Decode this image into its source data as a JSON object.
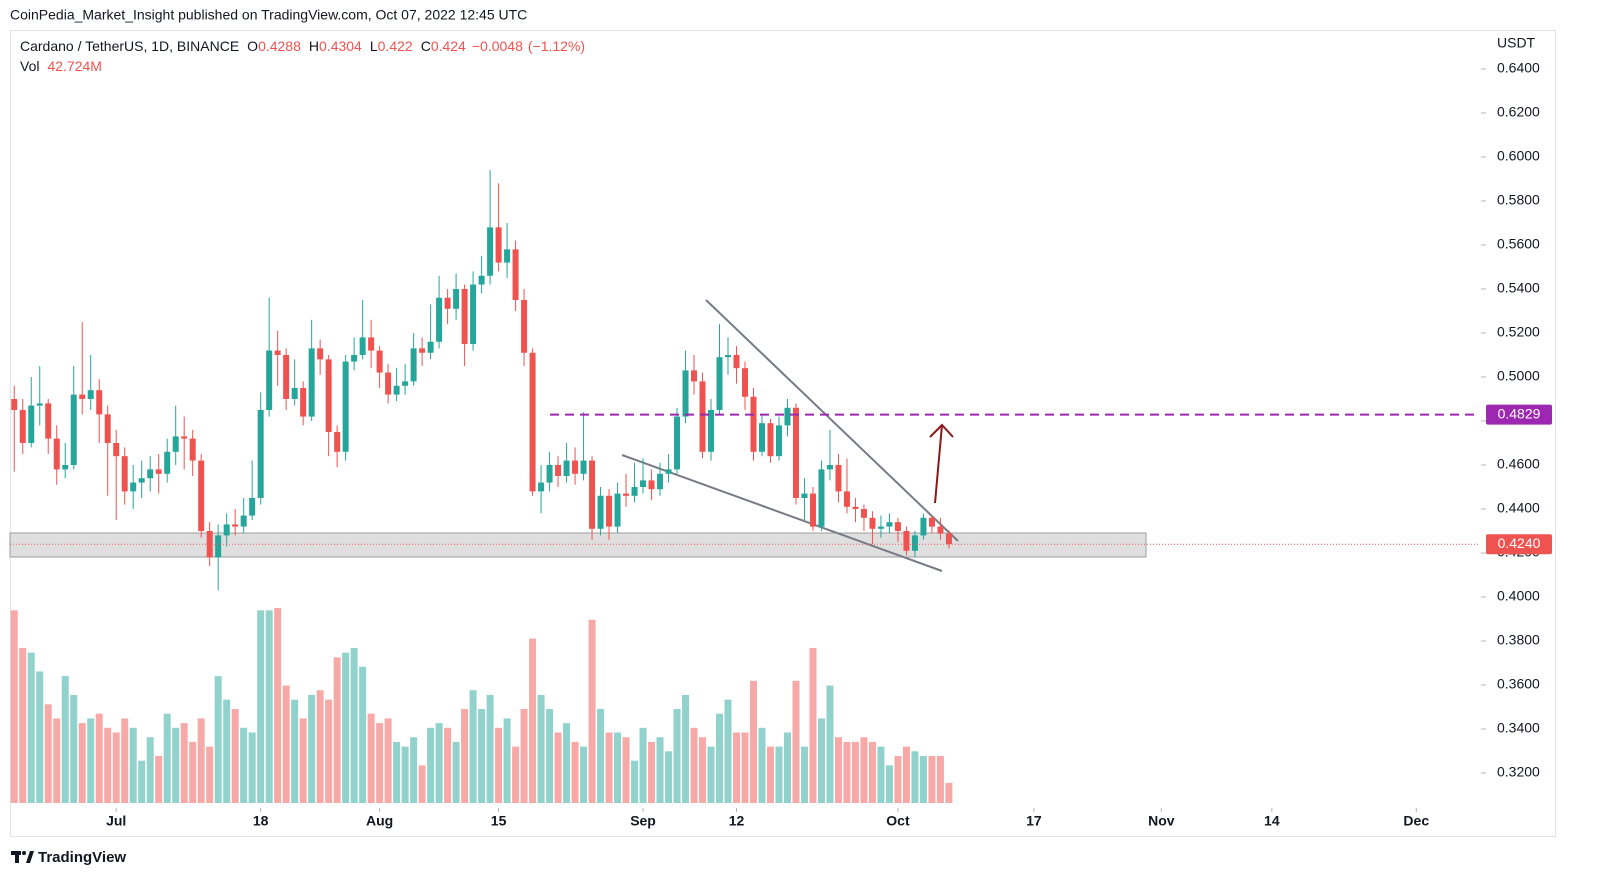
{
  "chart_data": {
    "type": "candlestick",
    "published": "CoinPedia_Market_Insight published on TradingView.com, Oct 07, 2022 12:45 UTC",
    "title": "Cardano / TetherUS, 1D, BINANCE",
    "ohlc_letters": [
      "O",
      "H",
      "L",
      "C"
    ],
    "change": {
      "value": -0.0048,
      "label": "−0.0048"
    },
    "change_pct": {
      "value": -1.12,
      "label": "(−1.12%)"
    },
    "vol_title": "Vol",
    "vol_last": {
      "value": 42.724,
      "label": "42.724M"
    },
    "y_unit": "USDT",
    "brand": "TradingView",
    "up_color": "#26a69a",
    "down_color": "#ef5350",
    "level": {
      "value": 0.4829,
      "color": "#9c27b0"
    },
    "last_price": {
      "value": 0.424,
      "label": "0.4240"
    },
    "ylim": [
      0.3041,
      0.6577
    ],
    "yticks": [
      {
        "value": 0.32,
        "label": "0.3200"
      },
      {
        "value": 0.34,
        "label": "0.3400"
      },
      {
        "value": 0.36,
        "label": "0.3600"
      },
      {
        "value": 0.38,
        "label": "0.3800"
      },
      {
        "value": 0.4,
        "label": "0.4000"
      },
      {
        "value": 0.42,
        "label": "0.4200"
      },
      {
        "value": 0.44,
        "label": "0.4400"
      },
      {
        "value": 0.46,
        "label": "0.4600"
      },
      {
        "value": 0.48,
        "label": "0.4800"
      },
      {
        "value": 0.5,
        "label": "0.5000"
      },
      {
        "value": 0.52,
        "label": "0.5200"
      },
      {
        "value": 0.54,
        "label": "0.5400"
      },
      {
        "value": 0.56,
        "label": "0.5600"
      },
      {
        "value": 0.58,
        "label": "0.5800"
      },
      {
        "value": 0.6,
        "label": "0.6000"
      },
      {
        "value": 0.62,
        "label": "0.6200"
      },
      {
        "value": 0.64,
        "label": "0.6400"
      }
    ],
    "categories": [
      null,
      null,
      null,
      null,
      null,
      null,
      null,
      null,
      null,
      null,
      null,
      null,
      "Jul",
      null,
      null,
      null,
      null,
      null,
      null,
      null,
      null,
      null,
      null,
      null,
      null,
      null,
      null,
      null,
      null,
      "18",
      null,
      null,
      null,
      null,
      null,
      null,
      null,
      null,
      null,
      null,
      null,
      null,
      null,
      "Aug",
      null,
      null,
      null,
      null,
      null,
      null,
      null,
      null,
      null,
      null,
      null,
      null,
      null,
      "15",
      null,
      null,
      null,
      null,
      null,
      null,
      null,
      null,
      null,
      null,
      null,
      null,
      null,
      null,
      null,
      null,
      "Sep",
      null,
      null,
      null,
      null,
      null,
      null,
      null,
      null,
      null,
      null,
      "12",
      null,
      null,
      null,
      null,
      null,
      null,
      null,
      null,
      null,
      null,
      null,
      null,
      null,
      null,
      null,
      null,
      null,
      null,
      "Oct",
      null,
      null,
      null,
      null,
      null,
      null,
      null,
      null,
      null,
      null,
      null,
      null,
      null,
      null,
      null,
      "17",
      null,
      null,
      null,
      null,
      null,
      null,
      null,
      null,
      null,
      null,
      null,
      null,
      null,
      null,
      "Nov",
      null,
      null,
      null,
      null,
      null,
      null,
      null,
      null,
      null,
      null,
      null,
      null,
      "14",
      null,
      null,
      null,
      null,
      null,
      null,
      null,
      null,
      null,
      null,
      null,
      null,
      null,
      null,
      null,
      null,
      "Dec",
      null,
      null,
      null,
      null,
      null,
      null,
      null
    ],
    "open": [
      0.49,
      0.485,
      0.47,
      0.487,
      0.488,
      0.472,
      0.458,
      0.46,
      0.492,
      0.49,
      0.494,
      0.483,
      0.47,
      0.464,
      0.448,
      0.452,
      0.454,
      0.458,
      0.456,
      0.466,
      0.473,
      0.472,
      0.462,
      0.43,
      0.418,
      0.428,
      0.433,
      0.432,
      0.437,
      0.445,
      0.485,
      0.512,
      0.51,
      0.49,
      0.495,
      0.482,
      0.513,
      0.508,
      0.475,
      0.466,
      0.507,
      0.51,
      0.518,
      0.512,
      0.502,
      0.492,
      0.496,
      0.498,
      0.513,
      0.511,
      0.516,
      0.536,
      0.531,
      0.54,
      0.515,
      0.542,
      0.546,
      0.568,
      0.552,
      0.558,
      0.535,
      0.511,
      0.448,
      0.452,
      0.46,
      0.455,
      0.462,
      0.456,
      0.462,
      0.431,
      0.446,
      0.432,
      0.447,
      0.446,
      0.45,
      0.453,
      0.449,
      0.456,
      0.458,
      0.482,
      0.503,
      0.498,
      0.466,
      0.485,
      0.509,
      0.51,
      0.504,
      0.491,
      0.466,
      0.479,
      0.464,
      0.478,
      0.486,
      0.445,
      0.447,
      0.432,
      0.458,
      0.46,
      0.448,
      0.441,
      0.44,
      0.436,
      0.431,
      0.432,
      0.434,
      0.43,
      0.421,
      0.428,
      0.436,
      0.432,
      0.4288,
      null,
      null,
      null,
      null,
      null,
      null,
      null,
      null,
      null,
      null,
      null,
      null,
      null,
      null,
      null,
      null,
      null,
      null,
      null,
      null,
      null,
      null,
      null,
      null,
      null,
      null,
      null,
      null,
      null,
      null,
      null,
      null,
      null,
      null,
      null,
      null,
      null,
      null,
      null,
      null,
      null,
      null,
      null,
      null,
      null,
      null,
      null,
      null,
      null,
      null,
      null,
      null,
      null,
      null,
      null,
      null,
      null,
      null,
      null,
      null,
      null,
      null
    ],
    "high": [
      0.496,
      0.49,
      0.5,
      0.505,
      0.49,
      0.478,
      0.47,
      0.505,
      0.525,
      0.51,
      0.499,
      0.487,
      0.476,
      0.468,
      0.46,
      0.462,
      0.464,
      0.465,
      0.472,
      0.487,
      0.482,
      0.476,
      0.465,
      0.434,
      0.433,
      0.438,
      0.44,
      0.445,
      0.462,
      0.493,
      0.536,
      0.521,
      0.513,
      0.508,
      0.498,
      0.526,
      0.517,
      0.51,
      0.478,
      0.51,
      0.518,
      0.535,
      0.526,
      0.514,
      0.506,
      0.504,
      0.506,
      0.52,
      0.518,
      0.533,
      0.546,
      0.54,
      0.547,
      0.542,
      0.548,
      0.555,
      0.594,
      0.588,
      0.57,
      0.562,
      0.54,
      0.513,
      0.46,
      0.466,
      0.464,
      0.47,
      0.468,
      0.484,
      0.464,
      0.45,
      0.449,
      0.452,
      0.456,
      0.461,
      0.463,
      0.458,
      0.461,
      0.465,
      0.486,
      0.512,
      0.51,
      0.502,
      0.49,
      0.524,
      0.518,
      0.514,
      0.507,
      0.495,
      0.483,
      0.481,
      0.482,
      0.49,
      0.488,
      0.454,
      0.45,
      0.462,
      0.476,
      0.465,
      0.463,
      0.445,
      0.442,
      0.439,
      0.437,
      0.438,
      0.436,
      0.432,
      0.43,
      0.438,
      0.437,
      0.436,
      0.4304,
      null,
      null,
      null,
      null,
      null,
      null,
      null,
      null,
      null,
      null,
      null,
      null,
      null,
      null,
      null,
      null,
      null,
      null,
      null,
      null,
      null,
      null,
      null,
      null,
      null,
      null,
      null,
      null,
      null,
      null,
      null,
      null,
      null,
      null,
      null,
      null,
      null,
      null,
      null,
      null,
      null,
      null,
      null,
      null,
      null,
      null,
      null,
      null,
      null,
      null,
      null,
      null,
      null,
      null,
      null,
      null,
      null,
      null,
      null,
      null,
      null,
      null
    ],
    "low": [
      0.457,
      0.465,
      0.468,
      0.478,
      0.465,
      0.451,
      0.454,
      0.458,
      0.483,
      0.485,
      0.47,
      0.446,
      0.435,
      0.442,
      0.44,
      0.445,
      0.448,
      0.447,
      0.452,
      0.46,
      0.458,
      0.455,
      0.427,
      0.414,
      0.403,
      0.423,
      0.428,
      0.429,
      0.435,
      0.442,
      0.482,
      0.496,
      0.485,
      0.487,
      0.478,
      0.48,
      0.501,
      0.464,
      0.459,
      0.462,
      0.503,
      0.508,
      0.504,
      0.495,
      0.488,
      0.489,
      0.492,
      0.496,
      0.505,
      0.508,
      0.513,
      0.524,
      0.526,
      0.505,
      0.512,
      0.538,
      0.542,
      0.548,
      0.545,
      0.53,
      0.505,
      0.446,
      0.438,
      0.448,
      0.45,
      0.452,
      0.451,
      0.453,
      0.426,
      0.428,
      0.426,
      0.429,
      0.441,
      0.443,
      0.447,
      0.444,
      0.446,
      0.452,
      0.456,
      0.479,
      0.492,
      0.463,
      0.462,
      0.483,
      0.501,
      0.497,
      0.485,
      0.462,
      0.464,
      0.461,
      0.462,
      0.473,
      0.442,
      0.435,
      0.43,
      0.43,
      0.453,
      0.443,
      0.438,
      0.434,
      0.43,
      0.424,
      0.427,
      0.429,
      0.425,
      0.419,
      0.418,
      0.426,
      0.429,
      0.426,
      0.422,
      null,
      null,
      null,
      null,
      null,
      null,
      null,
      null,
      null,
      null,
      null,
      null,
      null,
      null,
      null,
      null,
      null,
      null,
      null,
      null,
      null,
      null,
      null,
      null,
      null,
      null,
      null,
      null,
      null,
      null,
      null,
      null,
      null,
      null,
      null,
      null,
      null,
      null,
      null,
      null,
      null,
      null,
      null,
      null,
      null,
      null,
      null,
      null,
      null,
      null,
      null,
      null,
      null,
      null,
      null,
      null,
      null,
      null,
      null,
      null,
      null,
      null
    ],
    "close": [
      0.485,
      0.47,
      0.487,
      0.488,
      0.472,
      0.458,
      0.46,
      0.492,
      0.49,
      0.494,
      0.483,
      0.47,
      0.464,
      0.448,
      0.452,
      0.454,
      0.458,
      0.456,
      0.466,
      0.473,
      0.472,
      0.462,
      0.43,
      0.418,
      0.428,
      0.433,
      0.432,
      0.437,
      0.445,
      0.485,
      0.512,
      0.51,
      0.49,
      0.495,
      0.482,
      0.513,
      0.508,
      0.475,
      0.466,
      0.507,
      0.51,
      0.518,
      0.512,
      0.502,
      0.492,
      0.496,
      0.498,
      0.513,
      0.511,
      0.516,
      0.536,
      0.531,
      0.54,
      0.515,
      0.542,
      0.546,
      0.568,
      0.552,
      0.558,
      0.535,
      0.511,
      0.448,
      0.452,
      0.46,
      0.455,
      0.462,
      0.456,
      0.462,
      0.431,
      0.446,
      0.432,
      0.447,
      0.446,
      0.45,
      0.453,
      0.449,
      0.456,
      0.458,
      0.482,
      0.503,
      0.498,
      0.466,
      0.485,
      0.509,
      0.51,
      0.504,
      0.491,
      0.466,
      0.479,
      0.464,
      0.478,
      0.486,
      0.445,
      0.447,
      0.432,
      0.458,
      0.46,
      0.448,
      0.441,
      0.44,
      0.436,
      0.431,
      0.432,
      0.434,
      0.43,
      0.421,
      0.428,
      0.436,
      0.432,
      0.4288,
      0.424,
      null,
      null,
      null,
      null,
      null,
      null,
      null,
      null,
      null,
      null,
      null,
      null,
      null,
      null,
      null,
      null,
      null,
      null,
      null,
      null,
      null,
      null,
      null,
      null,
      null,
      null,
      null,
      null,
      null,
      null,
      null,
      null,
      null,
      null,
      null,
      null,
      null,
      null,
      null,
      null,
      null,
      null,
      null,
      null,
      null,
      null,
      null,
      null,
      null,
      null,
      null,
      null,
      null,
      null,
      null,
      null,
      null,
      null,
      null,
      null,
      null,
      null
    ],
    "volume": [
      410,
      330,
      320,
      280,
      210,
      180,
      270,
      230,
      170,
      180,
      190,
      160,
      150,
      180,
      160,
      90,
      140,
      100,
      190,
      160,
      170,
      130,
      180,
      120,
      270,
      220,
      200,
      160,
      150,
      410,
      410,
      415,
      250,
      220,
      180,
      230,
      240,
      220,
      310,
      320,
      330,
      290,
      190,
      170,
      180,
      130,
      120,
      140,
      80,
      160,
      170,
      160,
      130,
      200,
      240,
      200,
      230,
      160,
      180,
      120,
      200,
      350,
      230,
      200,
      150,
      170,
      130,
      120,
      390,
      200,
      150,
      150,
      140,
      90,
      160,
      130,
      140,
      110,
      200,
      230,
      160,
      140,
      120,
      190,
      220,
      150,
      150,
      260,
      160,
      120,
      120,
      150,
      260,
      120,
      330,
      180,
      250,
      140,
      130,
      130,
      140,
      130,
      120,
      80,
      100,
      120,
      110,
      100,
      100,
      100,
      42.724,
      null,
      null,
      null,
      null,
      null,
      null,
      null,
      null,
      null,
      null,
      null,
      null,
      null,
      null,
      null,
      null,
      null,
      null,
      null,
      null,
      null,
      null,
      null,
      null,
      null,
      null,
      null,
      null,
      null,
      null,
      null,
      null,
      null,
      null,
      null,
      null,
      null,
      null,
      null,
      null,
      null,
      null,
      null,
      null,
      null,
      null,
      null,
      null,
      null,
      null,
      null,
      null,
      null,
      null,
      null,
      null,
      null,
      null,
      null,
      null,
      null,
      null
    ]
  }
}
